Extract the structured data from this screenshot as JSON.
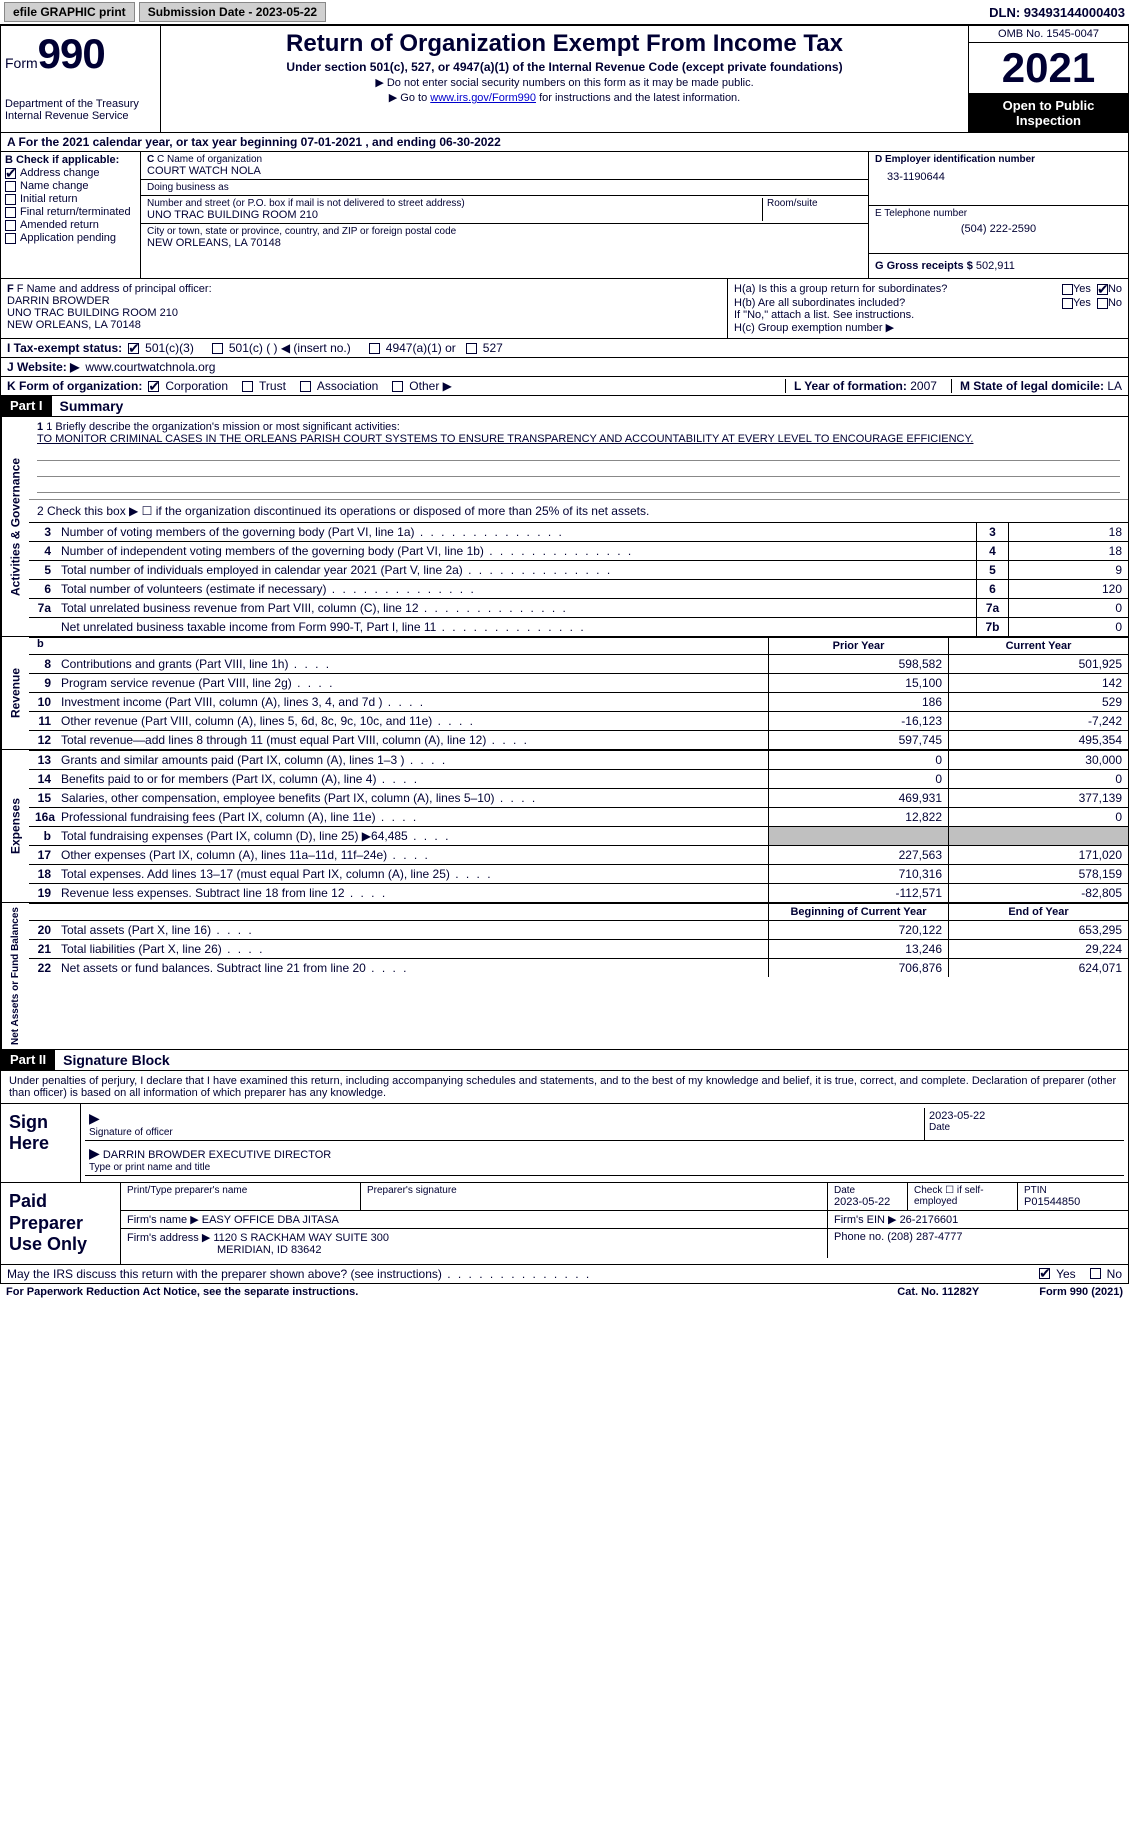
{
  "topbar": {
    "efile_btn": "efile GRAPHIC print",
    "sub_date_label": "Submission Date - 2023-05-22",
    "dln": "DLN: 93493144000403"
  },
  "header": {
    "form_word": "Form",
    "form_num": "990",
    "dept": "Department of the Treasury\nInternal Revenue Service",
    "title": "Return of Organization Exempt From Income Tax",
    "sub1": "Under section 501(c), 527, or 4947(a)(1) of the Internal Revenue Code (except private foundations)",
    "sub2": "▶ Do not enter social security numbers on this form as it may be made public.",
    "sub3_pre": "▶ Go to ",
    "sub3_link": "www.irs.gov/Form990",
    "sub3_post": " for instructions and the latest information.",
    "omb": "OMB No. 1545-0047",
    "year": "2021",
    "open": "Open to Public Inspection"
  },
  "period": "A For the 2021 calendar year, or tax year beginning 07-01-2021    , and ending 06-30-2022",
  "b": {
    "label": "B Check if applicable:",
    "items": [
      {
        "label": "Address change",
        "checked": true
      },
      {
        "label": "Name change",
        "checked": false
      },
      {
        "label": "Initial return",
        "checked": false
      },
      {
        "label": "Final return/terminated",
        "checked": false
      },
      {
        "label": "Amended return",
        "checked": false
      },
      {
        "label": "Application pending",
        "checked": false
      }
    ]
  },
  "c": {
    "name_label": "C Name of organization",
    "name": "COURT WATCH NOLA",
    "dba_label": "Doing business as",
    "dba": "",
    "addr_label": "Number and street (or P.O. box if mail is not delivered to street address)",
    "addr": "UNO TRAC BUILDING ROOM 210",
    "room_label": "Room/suite",
    "city_label": "City or town, state or province, country, and ZIP or foreign postal code",
    "city": "NEW ORLEANS, LA  70148"
  },
  "d": {
    "ein_label": "D Employer identification number",
    "ein": "33-1190644",
    "tel_label": "E Telephone number",
    "tel": "(504) 222-2590",
    "gross_label": "G Gross receipts $",
    "gross": "502,911"
  },
  "f": {
    "label": "F  Name and address of principal officer:",
    "name": "DARRIN BROWDER",
    "addr1": "UNO TRAC BUILDING ROOM 210",
    "addr2": "NEW ORLEANS, LA  70148"
  },
  "h": {
    "ha": "H(a)  Is this a group return for subordinates?",
    "hb": "H(b)  Are all subordinates included?",
    "hb_note": "If \"No,\" attach a list. See instructions.",
    "hc": "H(c)  Group exemption number ▶",
    "yes": "Yes",
    "no": "No"
  },
  "i": {
    "label": "I  Tax-exempt status:",
    "opts": [
      "501(c)(3)",
      "501(c) (  ) ◀ (insert no.)",
      "4947(a)(1) or",
      "527"
    ]
  },
  "j": {
    "label": "J  Website: ▶",
    "value": "www.courtwatchnola.org"
  },
  "k": {
    "label": "K Form of organization:",
    "opts": [
      "Corporation",
      "Trust",
      "Association",
      "Other ▶"
    ],
    "l_label": "L Year of formation:",
    "l_value": "2007",
    "m_label": "M State of legal domicile:",
    "m_value": "LA"
  },
  "part1": {
    "header": "Part I",
    "title": "Summary",
    "mission_label": "1  Briefly describe the organization's mission or most significant activities:",
    "mission": "TO MONITOR CRIMINAL CASES IN THE ORLEANS PARISH COURT SYSTEMS TO ENSURE TRANSPARENCY AND ACCOUNTABILITY AT EVERY LEVEL TO ENCOURAGE EFFICIENCY.",
    "line2": "2   Check this box ▶ ☐  if the organization discontinued its operations or disposed of more than 25% of its net assets.",
    "rows_ag": [
      {
        "n": "3",
        "desc": "Number of voting members of the governing body (Part VI, line 1a)",
        "box": "3",
        "val": "18"
      },
      {
        "n": "4",
        "desc": "Number of independent voting members of the governing body (Part VI, line 1b)",
        "box": "4",
        "val": "18"
      },
      {
        "n": "5",
        "desc": "Total number of individuals employed in calendar year 2021 (Part V, line 2a)",
        "box": "5",
        "val": "9"
      },
      {
        "n": "6",
        "desc": "Total number of volunteers (estimate if necessary)",
        "box": "6",
        "val": "120"
      },
      {
        "n": "7a",
        "desc": "Total unrelated business revenue from Part VIII, column (C), line 12",
        "box": "7a",
        "val": "0"
      },
      {
        "n": "",
        "desc": "Net unrelated business taxable income from Form 990-T, Part I, line 11",
        "box": "7b",
        "val": "0"
      }
    ],
    "head_prior": "Prior Year",
    "head_current": "Current Year",
    "rows_rev": [
      {
        "n": "8",
        "desc": "Contributions and grants (Part VIII, line 1h)",
        "c1": "598,582",
        "c2": "501,925"
      },
      {
        "n": "9",
        "desc": "Program service revenue (Part VIII, line 2g)",
        "c1": "15,100",
        "c2": "142"
      },
      {
        "n": "10",
        "desc": "Investment income (Part VIII, column (A), lines 3, 4, and 7d )",
        "c1": "186",
        "c2": "529"
      },
      {
        "n": "11",
        "desc": "Other revenue (Part VIII, column (A), lines 5, 6d, 8c, 9c, 10c, and 11e)",
        "c1": "-16,123",
        "c2": "-7,242"
      },
      {
        "n": "12",
        "desc": "Total revenue—add lines 8 through 11 (must equal Part VIII, column (A), line 12)",
        "c1": "597,745",
        "c2": "495,354"
      }
    ],
    "rows_exp": [
      {
        "n": "13",
        "desc": "Grants and similar amounts paid (Part IX, column (A), lines 1–3 )",
        "c1": "0",
        "c2": "30,000"
      },
      {
        "n": "14",
        "desc": "Benefits paid to or for members (Part IX, column (A), line 4)",
        "c1": "0",
        "c2": "0"
      },
      {
        "n": "15",
        "desc": "Salaries, other compensation, employee benefits (Part IX, column (A), lines 5–10)",
        "c1": "469,931",
        "c2": "377,139"
      },
      {
        "n": "16a",
        "desc": "Professional fundraising fees (Part IX, column (A), line 11e)",
        "c1": "12,822",
        "c2": "0"
      },
      {
        "n": "b",
        "desc": "Total fundraising expenses (Part IX, column (D), line 25) ▶64,485",
        "c1": "",
        "c2": "",
        "shaded": true
      },
      {
        "n": "17",
        "desc": "Other expenses (Part IX, column (A), lines 11a–11d, 11f–24e)",
        "c1": "227,563",
        "c2": "171,020"
      },
      {
        "n": "18",
        "desc": "Total expenses. Add lines 13–17 (must equal Part IX, column (A), line 25)",
        "c1": "710,316",
        "c2": "578,159"
      },
      {
        "n": "19",
        "desc": "Revenue less expenses. Subtract line 18 from line 12",
        "c1": "-112,571",
        "c2": "-82,805"
      }
    ],
    "head_begin": "Beginning of Current Year",
    "head_end": "End of Year",
    "rows_net": [
      {
        "n": "20",
        "desc": "Total assets (Part X, line 16)",
        "c1": "720,122",
        "c2": "653,295"
      },
      {
        "n": "21",
        "desc": "Total liabilities (Part X, line 26)",
        "c1": "13,246",
        "c2": "29,224"
      },
      {
        "n": "22",
        "desc": "Net assets or fund balances. Subtract line 21 from line 20",
        "c1": "706,876",
        "c2": "624,071"
      }
    ],
    "side_ag": "Activities & Governance",
    "side_rev": "Revenue",
    "side_exp": "Expenses",
    "side_net": "Net Assets or Fund Balances",
    "b_line": "b"
  },
  "part2": {
    "header": "Part II",
    "title": "Signature Block",
    "declaration": "Under penalties of perjury, I declare that I have examined this return, including accompanying schedules and statements, and to the best of my knowledge and belief, it is true, correct, and complete. Declaration of preparer (other than officer) is based on all information of which preparer has any knowledge.",
    "sign_here": "Sign Here",
    "sig_officer": "Signature of officer",
    "sig_date": "2023-05-22",
    "date_label": "Date",
    "officer_name": "DARRIN BROWDER EXECUTIVE DIRECTOR",
    "type_name": "Type or print name and title",
    "paid_label": "Paid Preparer Use Only",
    "print_name_label": "Print/Type preparer's name",
    "prep_sig_label": "Preparer's signature",
    "prep_date_label": "Date",
    "prep_date": "2023-05-22",
    "check_self": "Check ☐ if self-employed",
    "ptin_label": "PTIN",
    "ptin": "P01544850",
    "firm_name_label": "Firm's name    ▶",
    "firm_name": "EASY OFFICE DBA JITASA",
    "firm_ein_label": "Firm's EIN ▶",
    "firm_ein": "26-2176601",
    "firm_addr_label": "Firm's address ▶",
    "firm_addr1": "1120 S RACKHAM WAY SUITE 300",
    "firm_addr2": "MERIDIAN, ID  83642",
    "phone_label": "Phone no.",
    "phone": "(208) 287-4777",
    "discuss": "May the IRS discuss this return with the preparer shown above? (see instructions)",
    "yes": "Yes",
    "no": "No"
  },
  "footer": {
    "left": "For Paperwork Reduction Act Notice, see the separate instructions.",
    "mid": "Cat. No. 11282Y",
    "right": "Form 990 (2021)"
  }
}
